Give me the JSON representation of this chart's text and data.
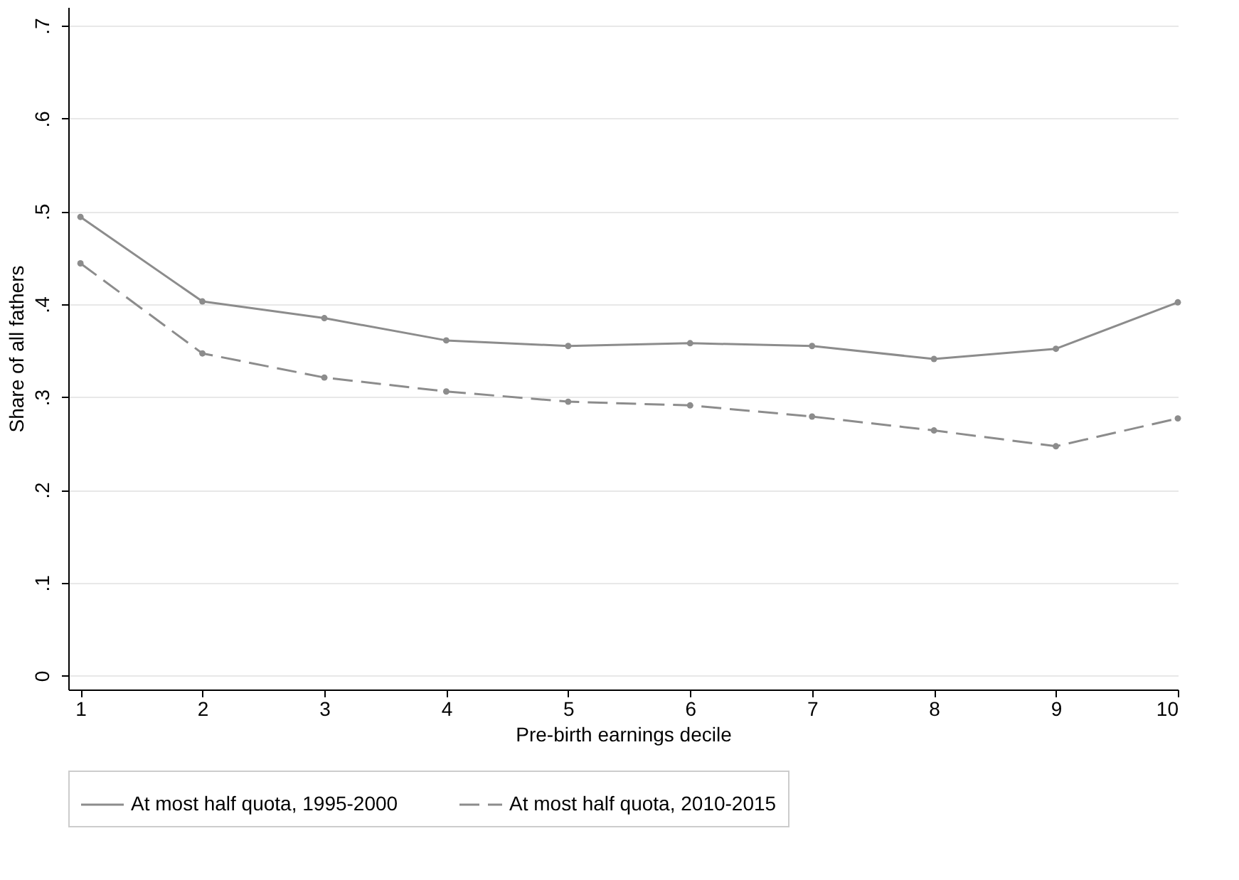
{
  "chart_data": {
    "type": "line",
    "xlabel": "Pre-birth earnings decile",
    "ylabel": "Share of all fathers",
    "x": [
      1,
      2,
      3,
      4,
      5,
      6,
      7,
      8,
      9,
      10
    ],
    "series": [
      {
        "name": "At most half quota, 1995-2000",
        "color": "#8c8c8c",
        "line_style": "solid",
        "values": [
          0.494,
          0.403,
          0.385,
          0.361,
          0.355,
          0.358,
          0.355,
          0.341,
          0.352,
          0.402
        ]
      },
      {
        "name": "At most half quota, 2010-2015",
        "color": "#8c8c8c",
        "line_style": "dashed",
        "values": [
          0.444,
          0.347,
          0.321,
          0.306,
          0.295,
          0.291,
          0.279,
          0.264,
          0.247,
          0.277
        ]
      }
    ],
    "xlim": [
      0.9,
      10
    ],
    "xticks": [
      1,
      2,
      3,
      4,
      5,
      6,
      7,
      8,
      9,
      10
    ],
    "ylim": [
      -0.015,
      0.72
    ],
    "yticks": [
      {
        "value": 0,
        "label": "0"
      },
      {
        "value": 0.1,
        "label": ".1"
      },
      {
        "value": 0.2,
        "label": ".2"
      },
      {
        "value": 0.3,
        "label": ".3"
      },
      {
        "value": 0.4,
        "label": ".4"
      },
      {
        "value": 0.5,
        "label": ".5"
      },
      {
        "value": 0.6,
        "label": ".6"
      },
      {
        "value": 0.7,
        "label": ".7"
      }
    ],
    "grid": "y",
    "legend": "bottom",
    "marker": "circle"
  }
}
